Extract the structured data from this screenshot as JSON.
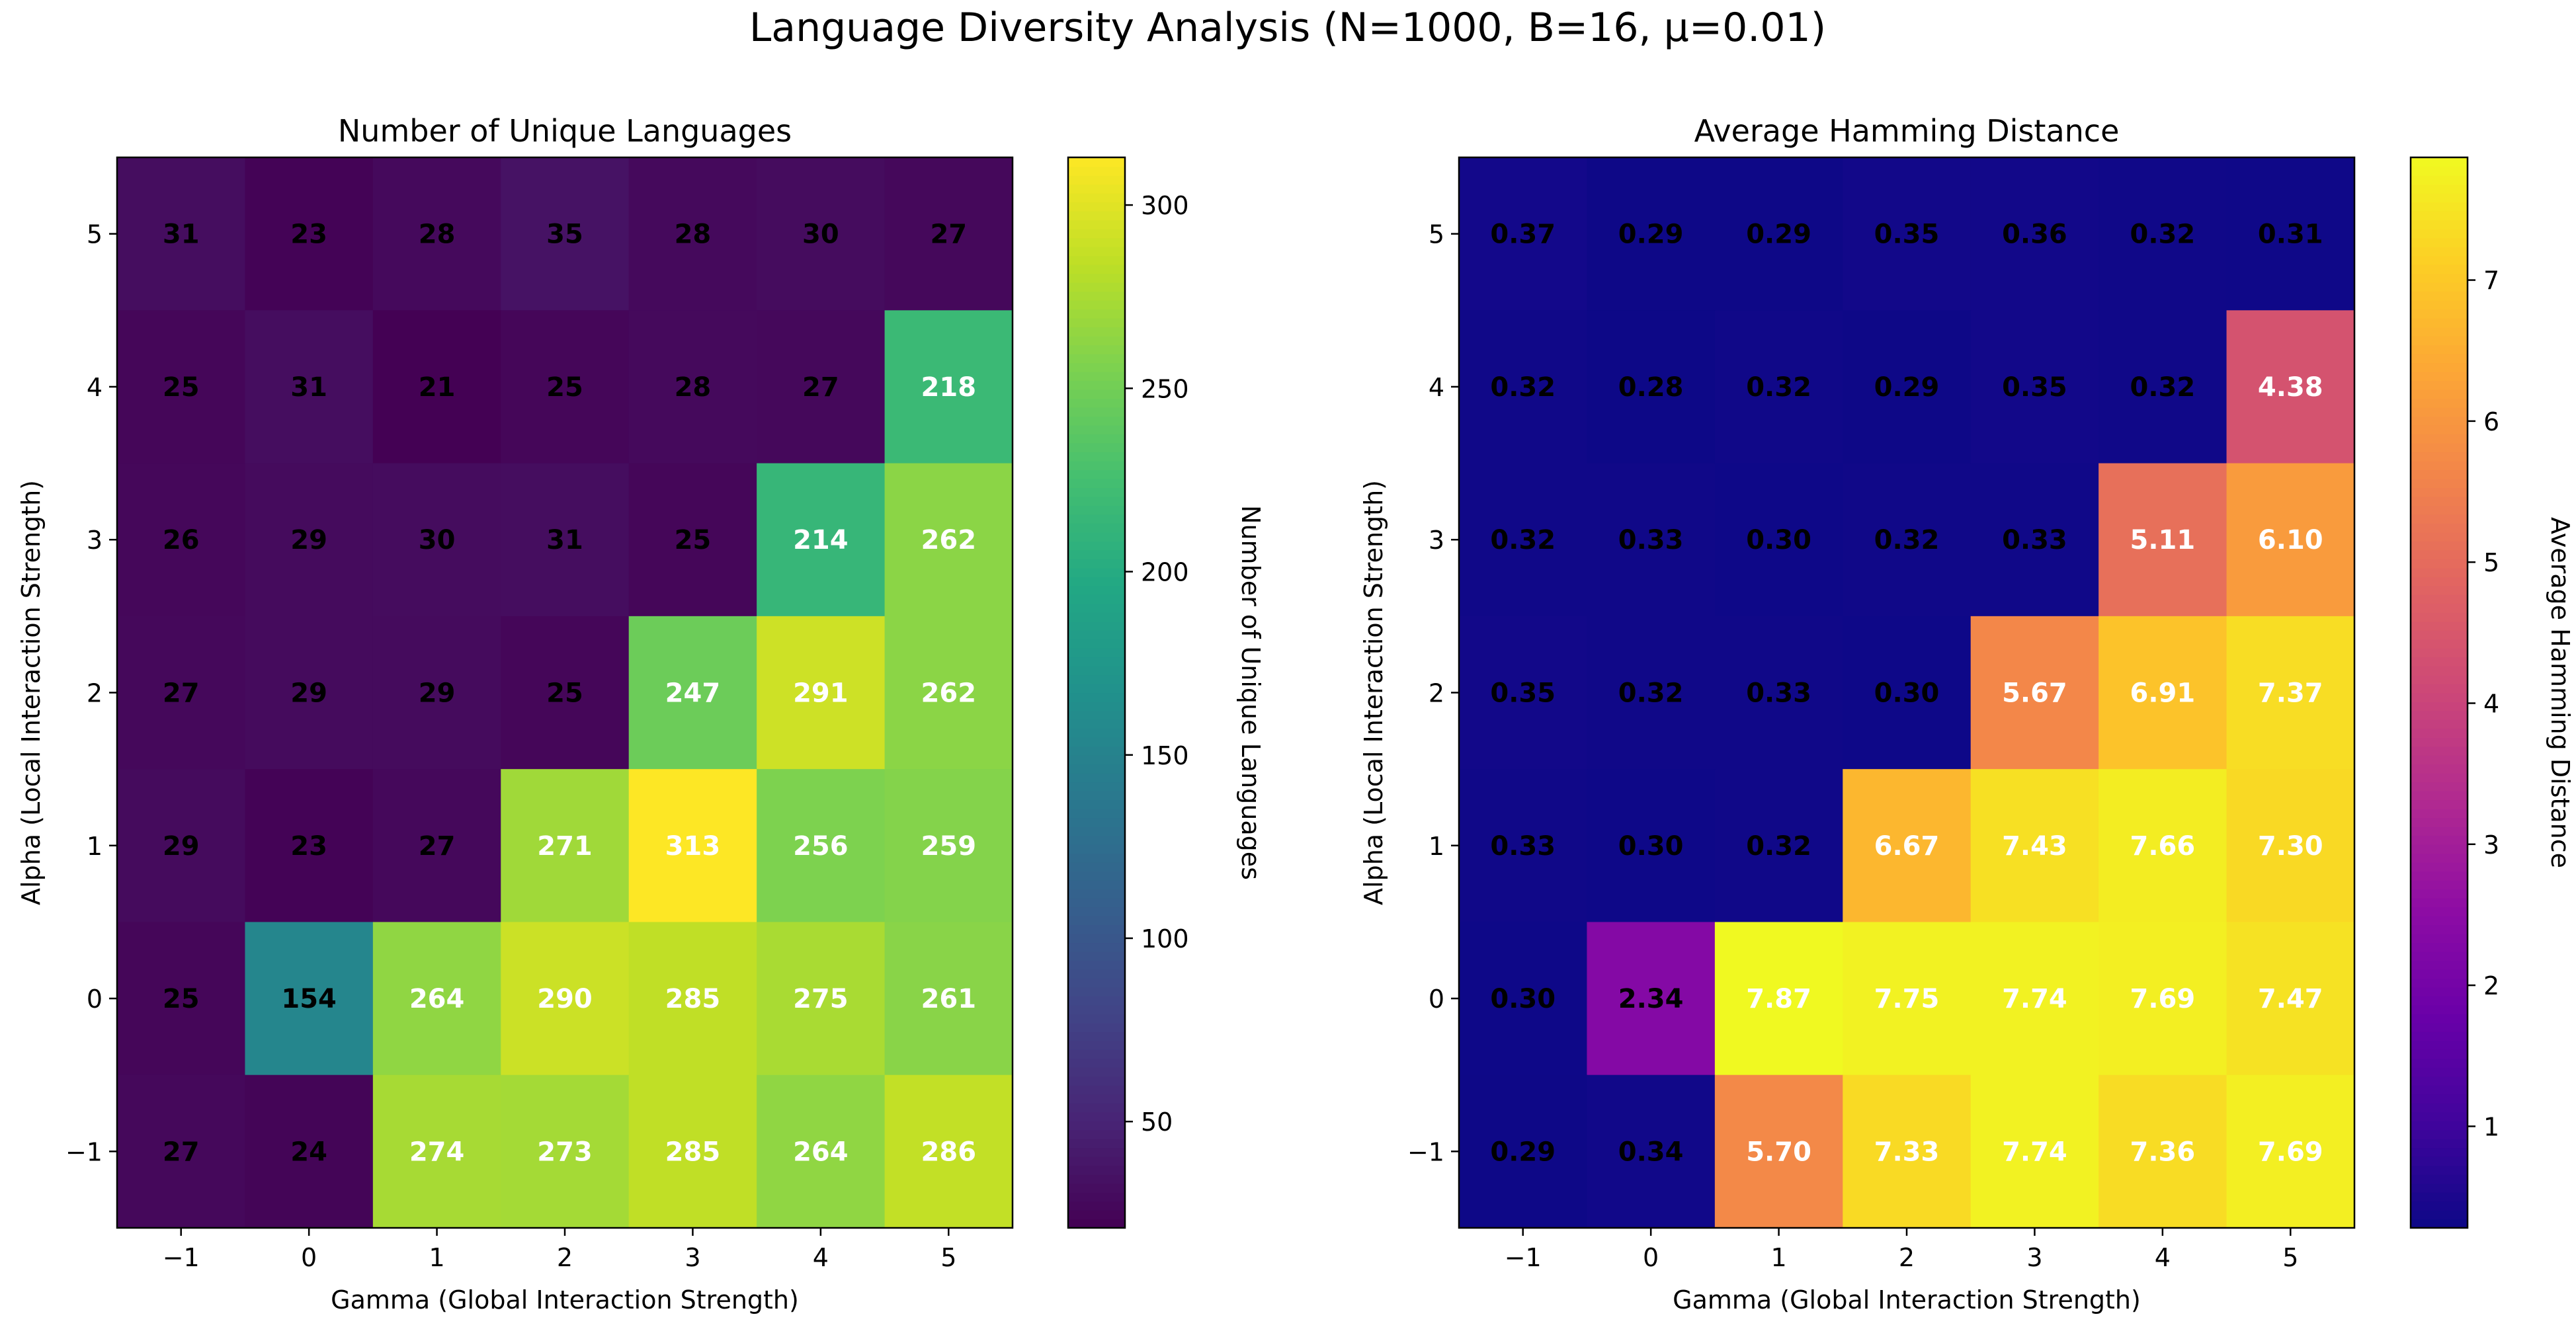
{
  "figure": {
    "suptitle": "Language Diversity Analysis (N=1000, B=16, μ=0.01)"
  },
  "chart_data": [
    {
      "type": "heatmap",
      "title": "Number of Unique Languages",
      "xlabel": "Gamma (Global Interaction Strength)",
      "ylabel": "Alpha (Local Interaction Strength)",
      "colorbar_label": "Number of Unique Languages",
      "colormap": "viridis",
      "x": [
        -1,
        0,
        1,
        2,
        3,
        4,
        5
      ],
      "y": [
        5,
        4,
        3,
        2,
        1,
        0,
        -1
      ],
      "xticklabels": [
        "−1",
        "0",
        "1",
        "2",
        "3",
        "4",
        "5"
      ],
      "yticklabels": [
        "5",
        "4",
        "3",
        "2",
        "1",
        "0",
        "−1"
      ],
      "values": [
        [
          31,
          23,
          28,
          35,
          28,
          30,
          27
        ],
        [
          25,
          31,
          21,
          25,
          28,
          27,
          218
        ],
        [
          26,
          29,
          30,
          31,
          25,
          214,
          262
        ],
        [
          27,
          29,
          29,
          25,
          247,
          291,
          262
        ],
        [
          29,
          23,
          27,
          271,
          313,
          256,
          259
        ],
        [
          25,
          154,
          264,
          290,
          285,
          275,
          261
        ],
        [
          27,
          24,
          274,
          273,
          285,
          264,
          286
        ]
      ],
      "labels": [
        [
          "31",
          "23",
          "28",
          "35",
          "28",
          "30",
          "27"
        ],
        [
          "25",
          "31",
          "21",
          "25",
          "28",
          "27",
          "218"
        ],
        [
          "26",
          "29",
          "30",
          "31",
          "25",
          "214",
          "262"
        ],
        [
          "27",
          "29",
          "29",
          "25",
          "247",
          "291",
          "262"
        ],
        [
          "29",
          "23",
          "27",
          "271",
          "313",
          "256",
          "259"
        ],
        [
          "25",
          "154",
          "264",
          "290",
          "285",
          "275",
          "261"
        ],
        [
          "27",
          "24",
          "274",
          "273",
          "285",
          "264",
          "286"
        ]
      ],
      "vmin": 21,
      "vmax": 313,
      "colorbar_ticks": [
        50,
        100,
        150,
        200,
        250,
        300
      ],
      "colorbar_ticklabels": [
        "50",
        "100",
        "150",
        "200",
        "250",
        "300"
      ]
    },
    {
      "type": "heatmap",
      "title": "Average Hamming Distance",
      "xlabel": "Gamma (Global Interaction Strength)",
      "ylabel": "Alpha (Local Interaction Strength)",
      "colorbar_label": "Average Hamming Distance",
      "colormap": "plasma",
      "x": [
        -1,
        0,
        1,
        2,
        3,
        4,
        5
      ],
      "y": [
        5,
        4,
        3,
        2,
        1,
        0,
        -1
      ],
      "xticklabels": [
        "−1",
        "0",
        "1",
        "2",
        "3",
        "4",
        "5"
      ],
      "yticklabels": [
        "5",
        "4",
        "3",
        "2",
        "1",
        "0",
        "−1"
      ],
      "values": [
        [
          0.37,
          0.29,
          0.29,
          0.35,
          0.36,
          0.32,
          0.31
        ],
        [
          0.32,
          0.28,
          0.32,
          0.29,
          0.35,
          0.32,
          4.38
        ],
        [
          0.32,
          0.33,
          0.3,
          0.32,
          0.33,
          5.11,
          6.1
        ],
        [
          0.35,
          0.32,
          0.33,
          0.3,
          5.67,
          6.91,
          7.37
        ],
        [
          0.33,
          0.3,
          0.32,
          6.67,
          7.43,
          7.66,
          7.3
        ],
        [
          0.3,
          2.34,
          7.87,
          7.75,
          7.74,
          7.69,
          7.47
        ],
        [
          0.29,
          0.34,
          5.7,
          7.33,
          7.74,
          7.36,
          7.69
        ]
      ],
      "labels": [
        [
          "0.37",
          "0.29",
          "0.29",
          "0.35",
          "0.36",
          "0.32",
          "0.31"
        ],
        [
          "0.32",
          "0.28",
          "0.32",
          "0.29",
          "0.35",
          "0.32",
          "4.38"
        ],
        [
          "0.32",
          "0.33",
          "0.30",
          "0.32",
          "0.33",
          "5.11",
          "6.10"
        ],
        [
          "0.35",
          "0.32",
          "0.33",
          "0.30",
          "5.67",
          "6.91",
          "7.37"
        ],
        [
          "0.33",
          "0.30",
          "0.32",
          "6.67",
          "7.43",
          "7.66",
          "7.30"
        ],
        [
          "0.30",
          "2.34",
          "7.87",
          "7.75",
          "7.74",
          "7.69",
          "7.47"
        ],
        [
          "0.29",
          "0.34",
          "5.70",
          "7.33",
          "7.74",
          "7.36",
          "7.69"
        ]
      ],
      "vmin": 0.28,
      "vmax": 7.87,
      "colorbar_ticks": [
        1,
        2,
        3,
        4,
        5,
        6,
        7
      ],
      "colorbar_ticklabels": [
        "1",
        "2",
        "3",
        "4",
        "5",
        "6",
        "7"
      ]
    }
  ]
}
